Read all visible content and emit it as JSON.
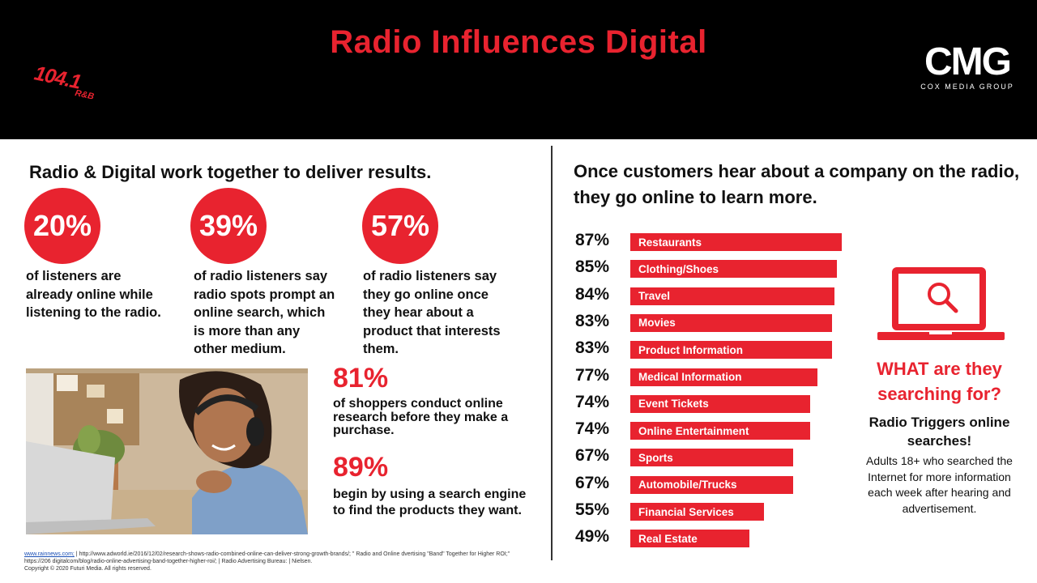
{
  "header": {
    "title": "Radio Influences Digital",
    "station_logo": {
      "freq": "104.1",
      "format": "R&B"
    },
    "cmg_logo": {
      "name": "CMG",
      "subtitle": "COX MEDIA GROUP"
    }
  },
  "left": {
    "heading": "Radio & Digital work together to deliver results.",
    "stats": [
      {
        "value": "20%",
        "text": "of listeners are already online while listening to the radio."
      },
      {
        "value": "39%",
        "text": "of radio listeners say radio spots prompt an online search, which is more than any other medium."
      },
      {
        "value": "57%",
        "text": "of radio listeners say they go online once they hear about a product that interests them."
      }
    ],
    "big_stats": [
      {
        "value": "81%",
        "text": "of shoppers conduct online research before they make a purchase."
      },
      {
        "value": "89%",
        "text": "begin by using a search engine to find the products they want."
      }
    ]
  },
  "sources": {
    "link": "www.rainnews.com;",
    "rest": " | http://www.adworld.ie/2016/12/02/research-shows-radio-combined-online-can-deliver-strong-growth-brands/; \" Radio and Online  dvertising \"Band\" Together for Higher ROI;\" https://206 digitalcom/blog/radio-online-advertising-band-together-higher-roi/; | Radio Advertising Bureau: | Nielsen.",
    "copyright": "Copyright © 2020 Futuri Media. All rights reserved."
  },
  "right": {
    "heading": "Once customers hear about a company on the radio, they go online to learn more.",
    "what_heading": "WHAT are they searching for?",
    "triggers": "Radio Triggers online searches!",
    "adults_note": "Adults 18+ who searched the Internet for more information each week after hearing and advertisement."
  },
  "colors": {
    "accent": "#e8232f",
    "header_bg": "#000000"
  },
  "icons": {
    "laptop": "laptop-search-icon"
  },
  "chart_data": {
    "type": "bar",
    "orientation": "horizontal",
    "categories": [
      "Restaurants",
      "Clothing/Shoes",
      "Travel",
      "Movies",
      "Product Information",
      "Medical Information",
      "Event Tickets",
      "Online Entertainment",
      "Sports",
      "Automobile/Trucks",
      "Financial Services",
      "Real Estate"
    ],
    "values": [
      87,
      85,
      84,
      83,
      83,
      77,
      74,
      74,
      67,
      67,
      55,
      49
    ],
    "labels": [
      "87%",
      "85%",
      "84%",
      "83%",
      "83%",
      "77%",
      "74%",
      "74%",
      "67%",
      "67%",
      "55%",
      "49%"
    ]
  }
}
